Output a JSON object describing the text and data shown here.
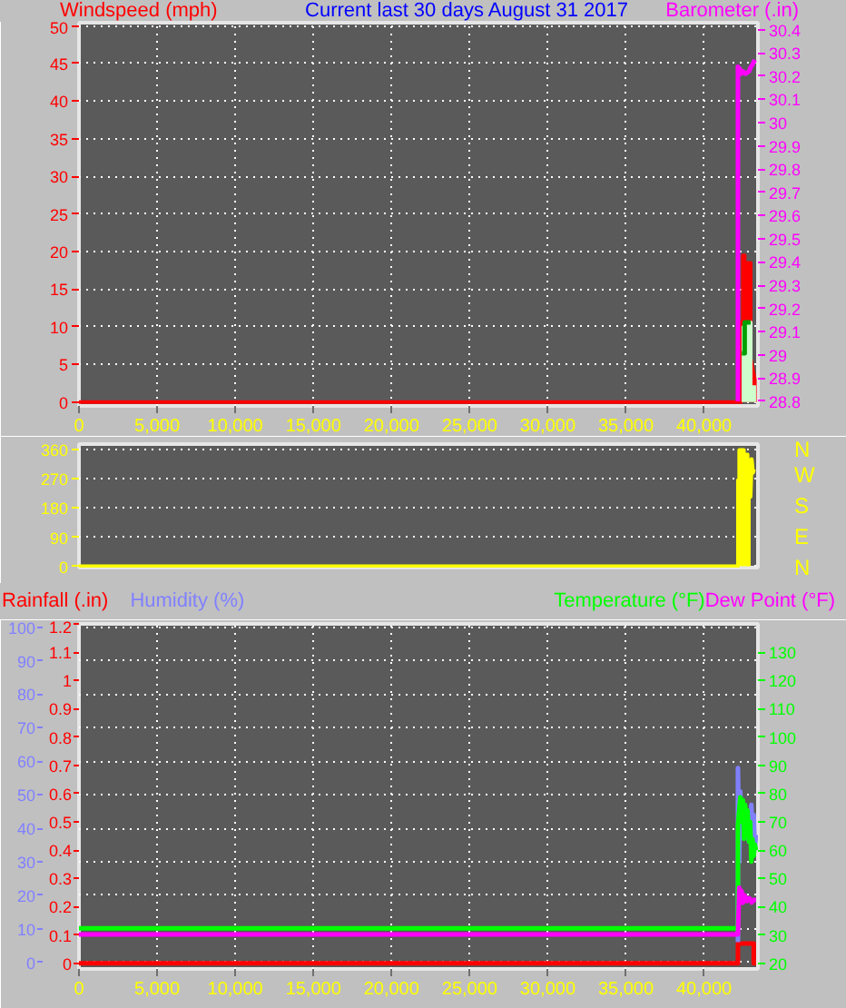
{
  "chart_data": [
    {
      "type": "line",
      "title": "Current last 30 days August 31 2017",
      "grid": true,
      "xlim": [
        0,
        43450
      ],
      "xticks": [
        0,
        {
          "value": 5000,
          "label": "5,000"
        },
        {
          "value": 10000,
          "label": "10,000"
        },
        {
          "value": 15000,
          "label": "15,000"
        },
        {
          "value": 20000,
          "label": "20,000"
        },
        {
          "value": 25000,
          "label": "25,000"
        },
        {
          "value": 30000,
          "label": "30,000"
        },
        {
          "value": 35000,
          "label": "35,000"
        },
        {
          "value": 40000,
          "label": "40,000"
        }
      ],
      "ylim": [
        -0.5,
        50.4
      ],
      "yticks": [
        0,
        5,
        10,
        15,
        20,
        25,
        30,
        35,
        40,
        45,
        50
      ],
      "y2lim": [
        28.78,
        30.43
      ],
      "y2ticks": [
        28.8,
        28.9,
        29,
        29.1,
        29.2,
        29.3,
        29.4,
        29.5,
        29.6,
        29.7,
        29.8,
        29.9,
        30,
        30.1,
        30.2,
        30.3,
        30.4
      ],
      "series": [
        {
          "name": "Windspeed (mph)",
          "type": "area",
          "color": "#ff0000",
          "x": [
            0,
            42170,
            42368,
            42368,
            42484,
            42484,
            42600,
            42600,
            42984,
            42984,
            43251,
            43251
          ],
          "values": [
            0,
            0,
            0,
            10.6,
            10.6,
            19.5,
            19.5,
            18.5,
            18.5,
            5.8,
            3,
            0
          ]
        },
        {
          "type": "area",
          "color": "#ccffcc",
          "x": [
            42400,
            42650,
            42650,
            42984,
            42984,
            43330
          ],
          "values": [
            9.9,
            9.9,
            10.6,
            10.6,
            2,
            2
          ]
        },
        {
          "type": "line",
          "color": "#00a000",
          "x": [
            42420,
            42600,
            42600,
            42984
          ],
          "values": [
            6.5,
            6.5,
            10.6,
            10.6
          ]
        },
        {
          "name": "Barometer (.in)",
          "type": "line",
          "axis": "y2",
          "color": "#ff00ff",
          "x": [
            42170,
            42170,
            42300,
            42368,
            42500,
            42650,
            42868,
            43000,
            43100,
            43251
          ],
          "values": [
            28.8,
            30.24,
            30.23,
            30.21,
            30.22,
            30.21,
            30.22,
            30.24,
            30.25,
            30.27
          ]
        }
      ]
    },
    {
      "type": "area",
      "grid": "y",
      "tick_labels": "y",
      "xlim": [
        0,
        43450
      ],
      "ylim": [
        -4,
        378
      ],
      "yticks": [
        0,
        90,
        180,
        270,
        360
      ],
      "y2_categories": [
        "N",
        "W",
        "S",
        "E",
        "N"
      ],
      "series": [
        {
          "color": "#ffff00",
          "x": [
            0,
            42170,
            42170,
            42250,
            42250,
            42555,
            42555,
            42787,
            42787,
            42868,
            42868
          ],
          "values": [
            0,
            0,
            266,
            266,
            360,
            360,
            346,
            346,
            328,
            328,
            0
          ]
        },
        {
          "type": "line",
          "color": "#ffff00",
          "x": [
            42868,
            42950,
            43030,
            43110,
            43180
          ],
          "values": [
            328,
            215,
            330,
            290,
            300
          ]
        }
      ]
    },
    {
      "type": "line",
      "grid": true,
      "xlim": [
        0,
        43450
      ],
      "xticks": [
        0,
        {
          "value": 5000,
          "label": "5,000"
        },
        {
          "value": 10000,
          "label": "10,000"
        },
        {
          "value": 15000,
          "label": "15,000"
        },
        {
          "value": 20000,
          "label": "20,000"
        },
        {
          "value": 25000,
          "label": "25,000"
        },
        {
          "value": 30000,
          "label": "30,000"
        },
        {
          "value": 35000,
          "label": "35,000"
        },
        {
          "value": 40000,
          "label": "40,000"
        }
      ],
      "ylim": [
        -2,
        101
      ],
      "yticks": [
        0,
        10,
        20,
        30,
        40,
        50,
        60,
        70,
        80,
        90,
        100
      ],
      "y2lim": [
        -0.02,
        1.2
      ],
      "y2ticks": [
        0,
        0.1,
        0.2,
        0.3,
        0.4,
        0.5,
        0.6,
        0.7,
        0.8,
        0.9,
        1,
        1.1,
        1.2
      ],
      "y3lim": [
        18,
        140
      ],
      "y3ticks": [
        20,
        30,
        40,
        50,
        60,
        70,
        80,
        90,
        100,
        110,
        120,
        130
      ],
      "series": [
        {
          "name": "Rainfall (.in)",
          "axis": "y2",
          "color": "#ff0000",
          "x": [
            0,
            42170,
            42170,
            43180,
            43180,
            43330
          ],
          "values": [
            0,
            0,
            0.07,
            0.07,
            0,
            0
          ]
        },
        {
          "name": "Humidity (%)",
          "color": "#8080ff",
          "x": [
            42170,
            42170,
            42250,
            42321,
            42400,
            42484,
            42600,
            42750,
            42900,
            43030,
            43100,
            43180,
            43251,
            43330
          ],
          "values": [
            6,
            58,
            30,
            51,
            37,
            45,
            40,
            38,
            36,
            47,
            35,
            44,
            34,
            38
          ]
        },
        {
          "name": "Temperature (°F)",
          "axis": "y3",
          "color": "#00ff00",
          "x": [
            0,
            42170,
            42170,
            42321,
            42400,
            42484,
            42560,
            42635,
            42710,
            42787,
            42870,
            42949,
            43030,
            43100,
            43180,
            43251,
            43330
          ],
          "values": [
            32.4,
            32.4,
            69,
            78.7,
            70,
            77.7,
            64,
            76,
            66,
            74,
            63,
            70,
            56,
            64,
            58,
            62,
            60
          ]
        },
        {
          "name": "Dew Point (°F)",
          "axis": "y3",
          "color": "#ff00ff",
          "x": [
            0,
            42170,
            42250,
            42321,
            42400,
            42484,
            42600,
            42750,
            42900,
            43050,
            43180,
            43330
          ],
          "values": [
            30.2,
            30.2,
            46.7,
            42,
            45.6,
            41.4,
            44,
            42,
            43,
            41.5,
            42.4,
            42.4
          ]
        }
      ]
    }
  ]
}
